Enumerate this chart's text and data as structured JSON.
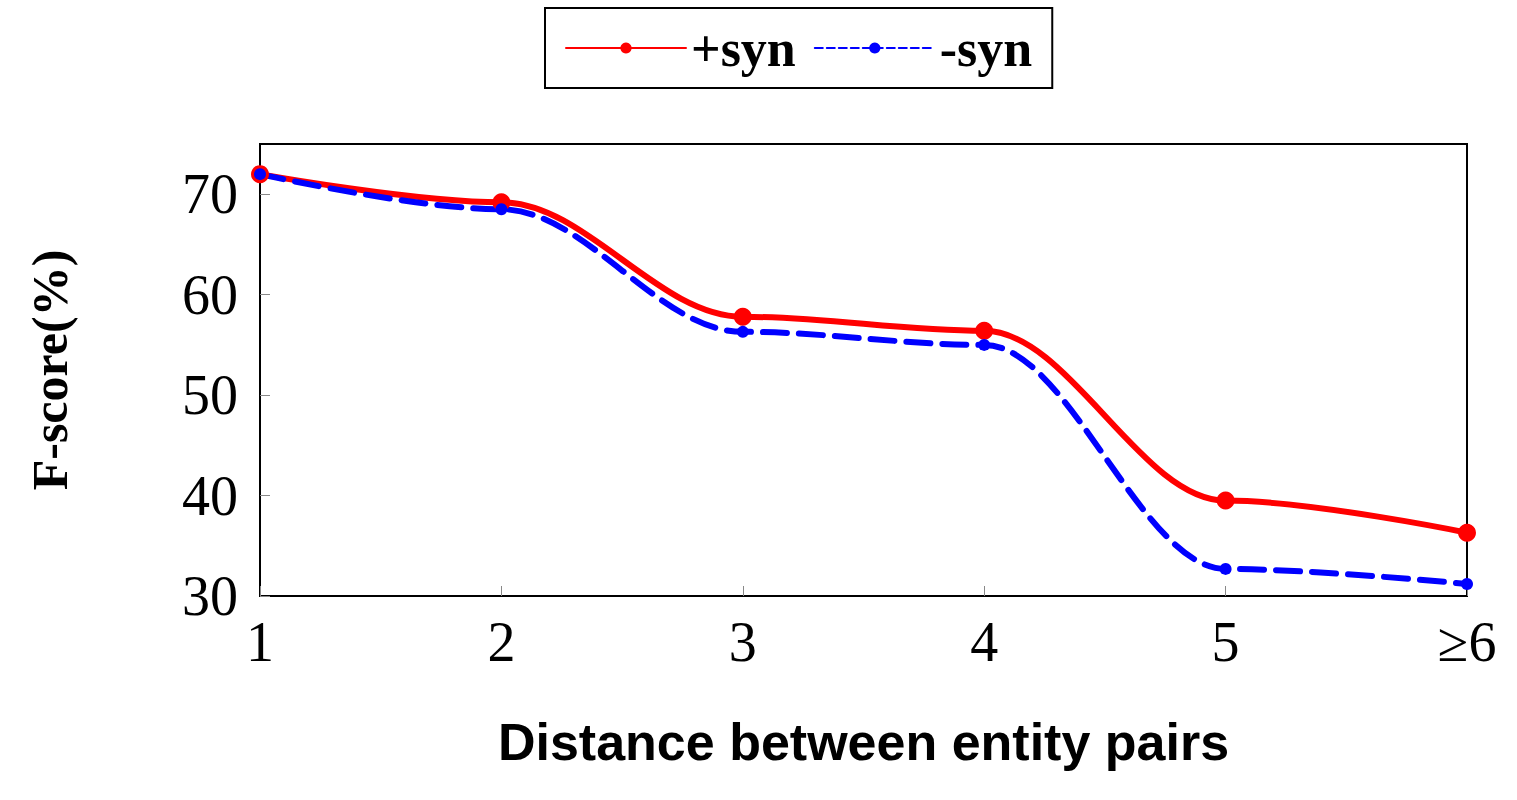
{
  "chart_data": {
    "type": "line",
    "xlabel": "Distance between entity pairs",
    "ylabel": "F-score(%)",
    "categories": [
      "1",
      "2",
      "3",
      "4",
      "5",
      "≥6"
    ],
    "series": [
      {
        "name": "+syn",
        "color": "#ff0000",
        "line_style": "solid",
        "values": [
          72.0,
          69.2,
          57.8,
          56.4,
          39.5,
          36.3
        ]
      },
      {
        "name": "-syn",
        "color": "#0000ff",
        "line_style": "dashed",
        "values": [
          72.0,
          68.5,
          56.3,
          55.0,
          32.7,
          31.2
        ]
      }
    ],
    "ylim": [
      30,
      75
    ],
    "yticks": [
      30,
      40,
      50,
      60,
      70
    ],
    "grid": false,
    "legend": "top",
    "marker": "circle"
  }
}
